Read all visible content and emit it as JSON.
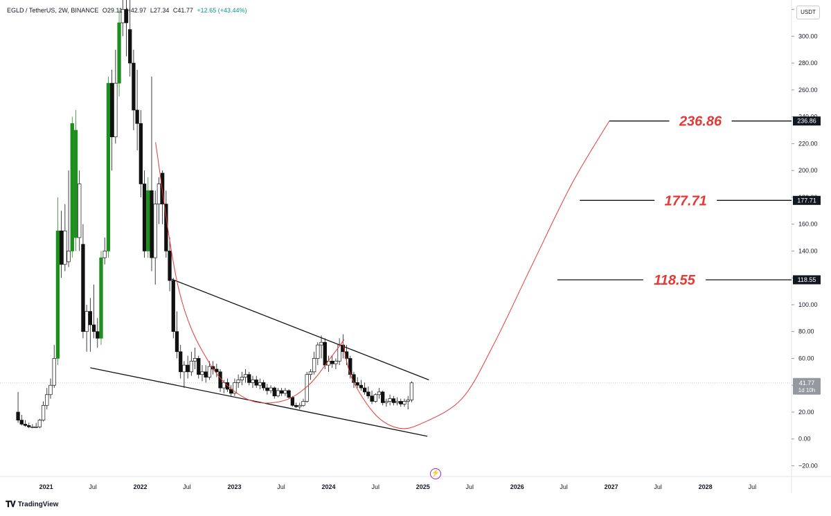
{
  "header": {
    "symbol": "EGLD / TetherUS, 2W, BINANCE",
    "open": "O29.11",
    "high": "H42.97",
    "low": "L27.34",
    "close": "C41.77",
    "change": "+12.65 (+43.44%)"
  },
  "currency": "USDT",
  "branding": "TradingView",
  "colors": {
    "up_candle": "#1e8f1e",
    "down_candle": "#111111",
    "hollow_candle": "#ffffff",
    "arc": "#e53935",
    "target_text": "#e53935",
    "line": "#111111"
  },
  "chart_data": {
    "type": "candlestick",
    "ylim": [
      -28,
      327
    ],
    "xlim": [
      "2020-07-06",
      "2028-11-30"
    ],
    "y_ticks": [
      -20,
      0,
      20,
      40,
      60,
      80,
      100,
      120,
      140,
      160,
      180,
      200,
      220,
      240,
      260,
      280,
      300,
      320
    ],
    "y_tick_labels": [
      "−20.00",
      "0.00",
      "20.00",
      "40.00",
      "60.00",
      "80.00",
      "100.00",
      "120.00",
      "140.00",
      "160.00",
      "180.00",
      "200.00",
      "220.00",
      "240.00",
      "260.00",
      "280.00",
      "300.00",
      "320.00"
    ],
    "x_ticks": [
      {
        "date": "2021-01-01",
        "label": "2021",
        "bold": true
      },
      {
        "date": "2021-07-01",
        "label": "Jul",
        "bold": false
      },
      {
        "date": "2022-01-01",
        "label": "2022",
        "bold": true
      },
      {
        "date": "2022-07-01",
        "label": "Jul",
        "bold": false
      },
      {
        "date": "2023-01-01",
        "label": "2023",
        "bold": true
      },
      {
        "date": "2023-07-01",
        "label": "Jul",
        "bold": false
      },
      {
        "date": "2024-01-01",
        "label": "2024",
        "bold": true
      },
      {
        "date": "2024-07-01",
        "label": "Jul",
        "bold": false
      },
      {
        "date": "2025-01-01",
        "label": "2025",
        "bold": true
      },
      {
        "date": "2025-07-01",
        "label": "Jul",
        "bold": false
      },
      {
        "date": "2026-01-01",
        "label": "2026",
        "bold": true
      },
      {
        "date": "2026-07-01",
        "label": "Jul",
        "bold": false
      },
      {
        "date": "2027-01-01",
        "label": "2027",
        "bold": true
      },
      {
        "date": "2027-07-01",
        "label": "Jul",
        "bold": false
      },
      {
        "date": "2028-01-01",
        "label": "2028",
        "bold": true
      },
      {
        "date": "2028-07-01",
        "label": "Jul",
        "bold": false
      }
    ],
    "candles": [
      {
        "date": "2020-09-14",
        "o": 20,
        "h": 35,
        "l": 12,
        "c": 14
      },
      {
        "date": "2020-09-28",
        "o": 14,
        "h": 18,
        "l": 10,
        "c": 11
      },
      {
        "date": "2020-10-12",
        "o": 11,
        "h": 14,
        "l": 9,
        "c": 10
      },
      {
        "date": "2020-10-26",
        "o": 10,
        "h": 12,
        "l": 8,
        "c": 9
      },
      {
        "date": "2020-11-09",
        "o": 9,
        "h": 11,
        "l": 8,
        "c": 9
      },
      {
        "date": "2020-11-23",
        "o": 9,
        "h": 12,
        "l": 8,
        "c": 9
      },
      {
        "date": "2020-12-07",
        "o": 9,
        "h": 15,
        "l": 8,
        "c": 14
      },
      {
        "date": "2020-12-21",
        "o": 14,
        "h": 28,
        "l": 13,
        "c": 25
      },
      {
        "date": "2021-01-04",
        "o": 25,
        "h": 38,
        "l": 22,
        "c": 33
      },
      {
        "date": "2021-01-18",
        "o": 33,
        "h": 45,
        "l": 30,
        "c": 40
      },
      {
        "date": "2021-02-01",
        "o": 40,
        "h": 70,
        "l": 38,
        "c": 60
      },
      {
        "date": "2021-02-15",
        "o": 60,
        "h": 180,
        "l": 55,
        "c": 155
      },
      {
        "date": "2021-03-01",
        "o": 155,
        "h": 170,
        "l": 120,
        "c": 130
      },
      {
        "date": "2021-03-15",
        "o": 130,
        "h": 175,
        "l": 125,
        "c": 155
      },
      {
        "date": "2021-03-29",
        "o": 132,
        "h": 200,
        "l": 128,
        "c": 140
      },
      {
        "date": "2021-04-12",
        "o": 140,
        "h": 240,
        "l": 135,
        "c": 235
      },
      {
        "date": "2021-04-26",
        "o": 150,
        "h": 245,
        "l": 140,
        "c": 230
      },
      {
        "date": "2021-05-10",
        "o": 150,
        "h": 200,
        "l": 140,
        "c": 190
      },
      {
        "date": "2021-05-24",
        "o": 145,
        "h": 160,
        "l": 75,
        "c": 80
      },
      {
        "date": "2021-06-07",
        "o": 80,
        "h": 100,
        "l": 65,
        "c": 95
      },
      {
        "date": "2021-06-21",
        "o": 95,
        "h": 105,
        "l": 65,
        "c": 85
      },
      {
        "date": "2021-07-05",
        "o": 85,
        "h": 115,
        "l": 75,
        "c": 80
      },
      {
        "date": "2021-07-19",
        "o": 80,
        "h": 90,
        "l": 68,
        "c": 75
      },
      {
        "date": "2021-08-02",
        "o": 75,
        "h": 140,
        "l": 70,
        "c": 135
      },
      {
        "date": "2021-08-16",
        "o": 135,
        "h": 150,
        "l": 130,
        "c": 140
      },
      {
        "date": "2021-08-30",
        "o": 140,
        "h": 270,
        "l": 135,
        "c": 265
      },
      {
        "date": "2021-09-13",
        "o": 265,
        "h": 275,
        "l": 200,
        "c": 225
      },
      {
        "date": "2021-09-27",
        "o": 225,
        "h": 290,
        "l": 220,
        "c": 265
      },
      {
        "date": "2021-10-11",
        "o": 265,
        "h": 320,
        "l": 255,
        "c": 310
      },
      {
        "date": "2021-10-25",
        "o": 310,
        "h": 327,
        "l": 300,
        "c": 320
      },
      {
        "date": "2021-11-08",
        "o": 320,
        "h": 327,
        "l": 285,
        "c": 310
      },
      {
        "date": "2021-11-22",
        "o": 305,
        "h": 327,
        "l": 270,
        "c": 280
      },
      {
        "date": "2021-12-06",
        "o": 280,
        "h": 290,
        "l": 230,
        "c": 245
      },
      {
        "date": "2021-12-20",
        "o": 245,
        "h": 275,
        "l": 215,
        "c": 235
      },
      {
        "date": "2022-01-03",
        "o": 235,
        "h": 245,
        "l": 180,
        "c": 190
      },
      {
        "date": "2022-01-17",
        "o": 190,
        "h": 200,
        "l": 135,
        "c": 140
      },
      {
        "date": "2022-01-31",
        "o": 140,
        "h": 195,
        "l": 135,
        "c": 185
      },
      {
        "date": "2022-02-14",
        "o": 185,
        "h": 270,
        "l": 125,
        "c": 135
      },
      {
        "date": "2022-02-28",
        "o": 135,
        "h": 185,
        "l": 115,
        "c": 175
      },
      {
        "date": "2022-03-14",
        "o": 175,
        "h": 195,
        "l": 160,
        "c": 190
      },
      {
        "date": "2022-03-28",
        "o": 198,
        "h": 200,
        "l": 160,
        "c": 175
      },
      {
        "date": "2022-04-11",
        "o": 175,
        "h": 185,
        "l": 135,
        "c": 140
      },
      {
        "date": "2022-04-25",
        "o": 140,
        "h": 150,
        "l": 110,
        "c": 118
      },
      {
        "date": "2022-05-09",
        "o": 118,
        "h": 120,
        "l": 75,
        "c": 80
      },
      {
        "date": "2022-05-23",
        "o": 80,
        "h": 95,
        "l": 60,
        "c": 65
      },
      {
        "date": "2022-06-06",
        "o": 65,
        "h": 70,
        "l": 45,
        "c": 50
      },
      {
        "date": "2022-06-20",
        "o": 50,
        "h": 58,
        "l": 38,
        "c": 55
      },
      {
        "date": "2022-07-04",
        "o": 55,
        "h": 62,
        "l": 45,
        "c": 50
      },
      {
        "date": "2022-07-18",
        "o": 50,
        "h": 65,
        "l": 47,
        "c": 58
      },
      {
        "date": "2022-08-01",
        "o": 58,
        "h": 68,
        "l": 52,
        "c": 60
      },
      {
        "date": "2022-08-15",
        "o": 60,
        "h": 62,
        "l": 45,
        "c": 48
      },
      {
        "date": "2022-08-29",
        "o": 48,
        "h": 55,
        "l": 43,
        "c": 50
      },
      {
        "date": "2022-09-12",
        "o": 50,
        "h": 55,
        "l": 42,
        "c": 46
      },
      {
        "date": "2022-09-26",
        "o": 46,
        "h": 58,
        "l": 44,
        "c": 54
      },
      {
        "date": "2022-10-10",
        "o": 54,
        "h": 58,
        "l": 48,
        "c": 52
      },
      {
        "date": "2022-10-24",
        "o": 52,
        "h": 56,
        "l": 46,
        "c": 50
      },
      {
        "date": "2022-11-07",
        "o": 50,
        "h": 52,
        "l": 35,
        "c": 38
      },
      {
        "date": "2022-11-21",
        "o": 38,
        "h": 44,
        "l": 34,
        "c": 42
      },
      {
        "date": "2022-12-05",
        "o": 42,
        "h": 45,
        "l": 35,
        "c": 37
      },
      {
        "date": "2022-12-19",
        "o": 37,
        "h": 40,
        "l": 32,
        "c": 34
      },
      {
        "date": "2023-01-02",
        "o": 34,
        "h": 45,
        "l": 32,
        "c": 42
      },
      {
        "date": "2023-01-16",
        "o": 42,
        "h": 48,
        "l": 38,
        "c": 44
      },
      {
        "date": "2023-01-30",
        "o": 44,
        "h": 50,
        "l": 40,
        "c": 46
      },
      {
        "date": "2023-02-13",
        "o": 46,
        "h": 52,
        "l": 42,
        "c": 48
      },
      {
        "date": "2023-02-27",
        "o": 48,
        "h": 50,
        "l": 40,
        "c": 42
      },
      {
        "date": "2023-03-13",
        "o": 42,
        "h": 47,
        "l": 38,
        "c": 44
      },
      {
        "date": "2023-03-27",
        "o": 44,
        "h": 47,
        "l": 38,
        "c": 40
      },
      {
        "date": "2023-04-10",
        "o": 40,
        "h": 45,
        "l": 37,
        "c": 42
      },
      {
        "date": "2023-04-24",
        "o": 42,
        "h": 44,
        "l": 36,
        "c": 38
      },
      {
        "date": "2023-05-08",
        "o": 38,
        "h": 41,
        "l": 33,
        "c": 36
      },
      {
        "date": "2023-05-22",
        "o": 36,
        "h": 40,
        "l": 34,
        "c": 38
      },
      {
        "date": "2023-06-05",
        "o": 38,
        "h": 39,
        "l": 30,
        "c": 32
      },
      {
        "date": "2023-06-19",
        "o": 32,
        "h": 38,
        "l": 31,
        "c": 36
      },
      {
        "date": "2023-07-03",
        "o": 36,
        "h": 38,
        "l": 32,
        "c": 34
      },
      {
        "date": "2023-07-17",
        "o": 34,
        "h": 38,
        "l": 32,
        "c": 36
      },
      {
        "date": "2023-07-31",
        "o": 36,
        "h": 37,
        "l": 30,
        "c": 31
      },
      {
        "date": "2023-08-14",
        "o": 31,
        "h": 32,
        "l": 24,
        "c": 25
      },
      {
        "date": "2023-08-28",
        "o": 25,
        "h": 27,
        "l": 23,
        "c": 24
      },
      {
        "date": "2023-09-11",
        "o": 24,
        "h": 27,
        "l": 22,
        "c": 25
      },
      {
        "date": "2023-09-25",
        "o": 25,
        "h": 30,
        "l": 24,
        "c": 28
      },
      {
        "date": "2023-10-09",
        "o": 28,
        "h": 50,
        "l": 27,
        "c": 48
      },
      {
        "date": "2023-10-23",
        "o": 48,
        "h": 52,
        "l": 44,
        "c": 50
      },
      {
        "date": "2023-11-06",
        "o": 50,
        "h": 65,
        "l": 48,
        "c": 60
      },
      {
        "date": "2023-11-20",
        "o": 60,
        "h": 72,
        "l": 55,
        "c": 70
      },
      {
        "date": "2023-12-04",
        "o": 70,
        "h": 77,
        "l": 60,
        "c": 72
      },
      {
        "date": "2023-12-18",
        "o": 72,
        "h": 75,
        "l": 52,
        "c": 55
      },
      {
        "date": "2024-01-01",
        "o": 55,
        "h": 62,
        "l": 50,
        "c": 58
      },
      {
        "date": "2024-01-15",
        "o": 58,
        "h": 62,
        "l": 53,
        "c": 56
      },
      {
        "date": "2024-01-29",
        "o": 56,
        "h": 60,
        "l": 52,
        "c": 58
      },
      {
        "date": "2024-02-12",
        "o": 58,
        "h": 75,
        "l": 55,
        "c": 70
      },
      {
        "date": "2024-02-26",
        "o": 70,
        "h": 78,
        "l": 60,
        "c": 65
      },
      {
        "date": "2024-03-11",
        "o": 65,
        "h": 70,
        "l": 55,
        "c": 60
      },
      {
        "date": "2024-03-25",
        "o": 60,
        "h": 62,
        "l": 45,
        "c": 48
      },
      {
        "date": "2024-04-08",
        "o": 48,
        "h": 50,
        "l": 38,
        "c": 42
      },
      {
        "date": "2024-04-22",
        "o": 42,
        "h": 46,
        "l": 38,
        "c": 40
      },
      {
        "date": "2024-05-06",
        "o": 40,
        "h": 44,
        "l": 36,
        "c": 38
      },
      {
        "date": "2024-05-20",
        "o": 38,
        "h": 42,
        "l": 33,
        "c": 35
      },
      {
        "date": "2024-06-03",
        "o": 35,
        "h": 39,
        "l": 30,
        "c": 32
      },
      {
        "date": "2024-06-17",
        "o": 32,
        "h": 36,
        "l": 26,
        "c": 28
      },
      {
        "date": "2024-07-01",
        "o": 28,
        "h": 34,
        "l": 27,
        "c": 33
      },
      {
        "date": "2024-07-15",
        "o": 33,
        "h": 38,
        "l": 30,
        "c": 35
      },
      {
        "date": "2024-07-29",
        "o": 35,
        "h": 36,
        "l": 25,
        "c": 27
      },
      {
        "date": "2024-08-12",
        "o": 27,
        "h": 30,
        "l": 24,
        "c": 28
      },
      {
        "date": "2024-08-26",
        "o": 28,
        "h": 33,
        "l": 25,
        "c": 30
      },
      {
        "date": "2024-09-09",
        "o": 30,
        "h": 32,
        "l": 25,
        "c": 27
      },
      {
        "date": "2024-09-23",
        "o": 27,
        "h": 31,
        "l": 25,
        "c": 28
      },
      {
        "date": "2024-10-07",
        "o": 28,
        "h": 30,
        "l": 24,
        "c": 26
      },
      {
        "date": "2024-10-21",
        "o": 26,
        "h": 30,
        "l": 24,
        "c": 28
      },
      {
        "date": "2024-11-04",
        "o": 28,
        "h": 32,
        "l": 22,
        "c": 29
      },
      {
        "date": "2024-11-18",
        "o": 29.11,
        "h": 42.97,
        "l": 27.34,
        "c": 41.77
      }
    ],
    "trendlines": [
      {
        "name": "upper",
        "from": {
          "date": "2022-05-03",
          "price": 119
        },
        "to": {
          "date": "2025-01-24",
          "price": 44
        }
      },
      {
        "name": "lower",
        "from": {
          "date": "2021-06-21",
          "price": 53
        },
        "to": {
          "date": "2025-01-18",
          "price": 2
        }
      }
    ],
    "arcs": [
      {
        "name": "arc-1",
        "points": [
          [
            "2022-03-01",
            221
          ],
          [
            "2022-06-01",
            110
          ],
          [
            "2022-10-01",
            55
          ],
          [
            "2023-02-15",
            30
          ],
          [
            "2023-07-01",
            28
          ],
          [
            "2023-10-15",
            40
          ],
          [
            "2024-01-15",
            62
          ],
          [
            "2024-03-01",
            74
          ]
        ]
      },
      {
        "name": "arc-2",
        "points": [
          [
            "2024-02-25",
            72
          ],
          [
            "2024-04-01",
            45
          ],
          [
            "2024-07-01",
            18
          ],
          [
            "2024-10-01",
            8
          ],
          [
            "2025-01-01",
            12
          ],
          [
            "2025-06-01",
            30
          ],
          [
            "2025-10-01",
            70
          ],
          [
            "2026-03-01",
            130
          ],
          [
            "2026-08-01",
            190
          ],
          [
            "2026-12-25",
            237
          ]
        ]
      }
    ],
    "targets": [
      {
        "value": 236.86,
        "label": "236.86",
        "start": "2026-12-25"
      },
      {
        "value": 177.71,
        "label": "177.71",
        "start": "2026-09-01"
      },
      {
        "value": 118.55,
        "label": "118.55",
        "start": "2026-06-06"
      }
    ],
    "current_price": {
      "value": 41.77,
      "label": "41.77",
      "countdown": "1d 10h"
    }
  }
}
